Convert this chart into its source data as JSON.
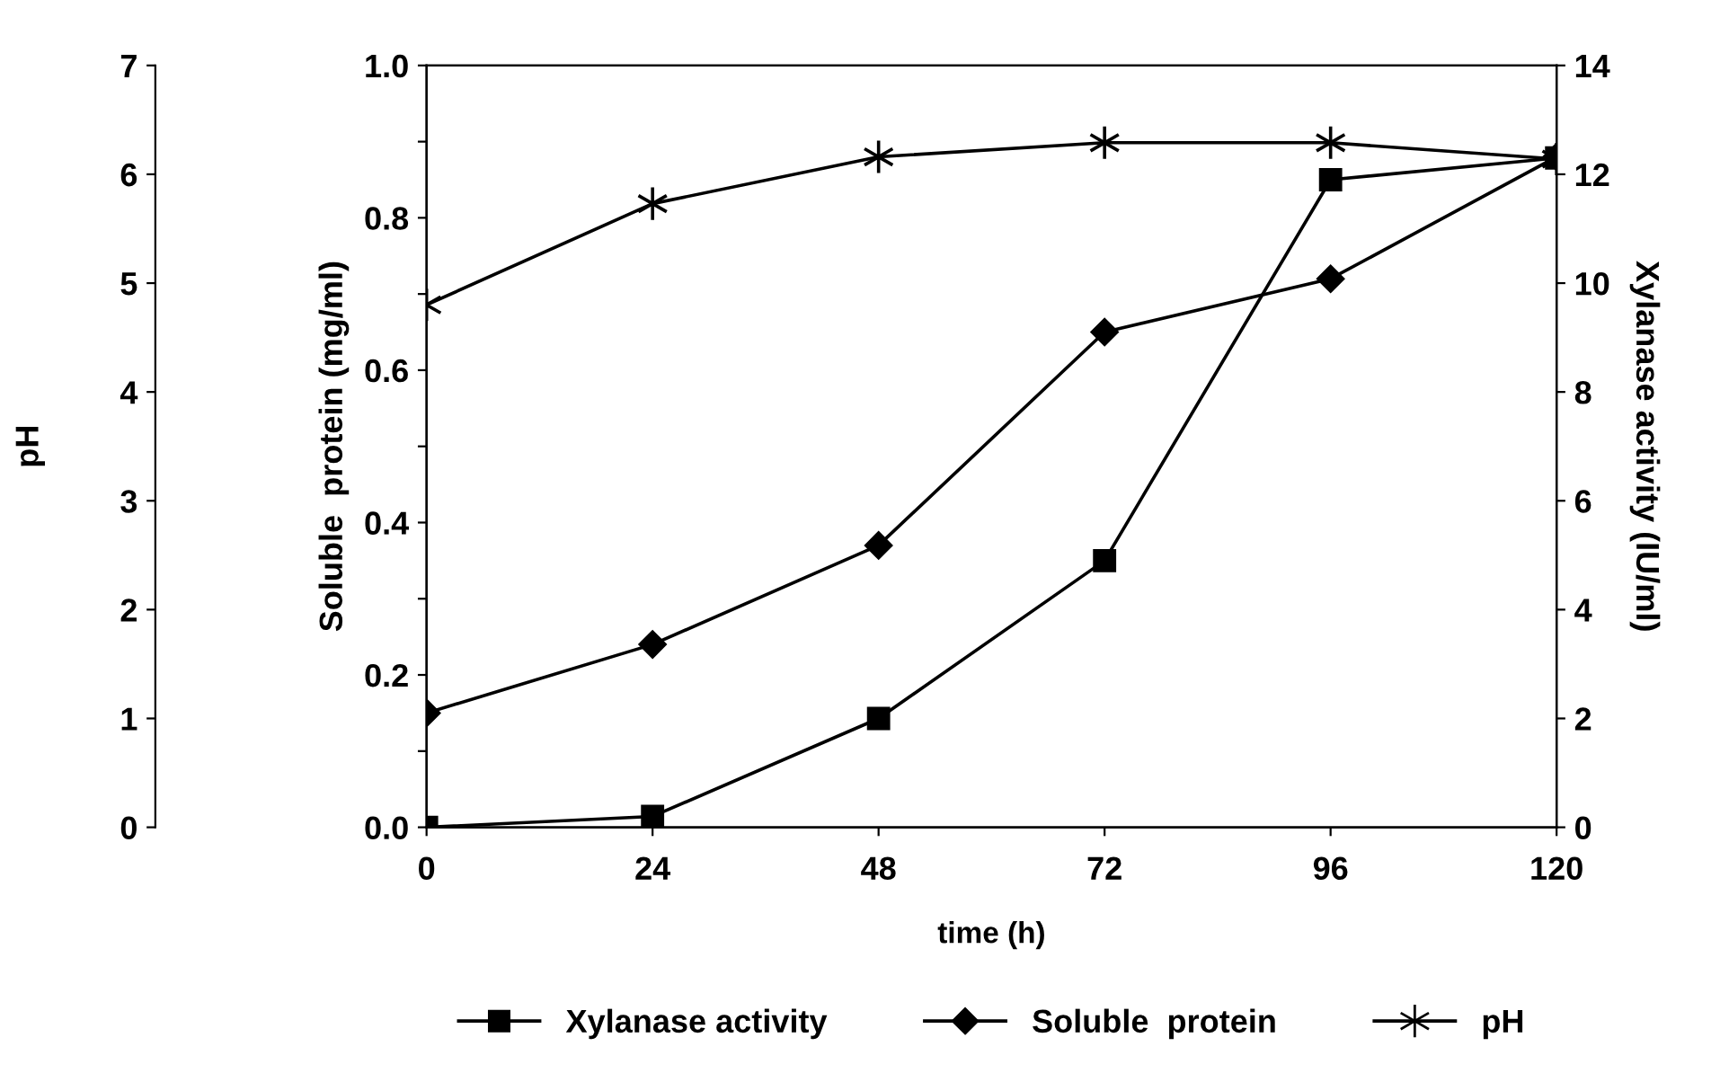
{
  "chart_data": {
    "type": "line",
    "xlabel": "time (h)",
    "ylabel": "Soluble  protein (mg/ml)",
    "y2label": "Xylanase activity (IU/ml)",
    "y3label": "pH",
    "x": [
      0,
      24,
      48,
      72,
      96,
      120
    ],
    "xlim": [
      0,
      120
    ],
    "xticks": [
      0,
      24,
      48,
      72,
      96,
      120
    ],
    "ylim": [
      0,
      1.0
    ],
    "yticks": [
      {
        "value": 0,
        "label": "0.0"
      },
      {
        "value": 0.1,
        "label": null
      },
      {
        "value": 0.2,
        "label": "0.2"
      },
      {
        "value": 0.3,
        "label": null
      },
      {
        "value": 0.4,
        "label": "0.4"
      },
      {
        "value": 0.5,
        "label": null
      },
      {
        "value": 0.6,
        "label": "0.6"
      },
      {
        "value": 0.7,
        "label": null
      },
      {
        "value": 0.8,
        "label": "0.8"
      },
      {
        "value": 0.9,
        "label": null
      },
      {
        "value": 1.0,
        "label": "1.0"
      }
    ],
    "y2lim": [
      0,
      14
    ],
    "y2ticks": [
      0,
      2,
      4,
      6,
      8,
      10,
      12,
      14
    ],
    "y3lim": [
      0,
      7
    ],
    "y3ticks": [
      0,
      1,
      2,
      3,
      4,
      5,
      6,
      7
    ],
    "grid": false,
    "legend": "bottom",
    "line_style": "solid",
    "series": [
      {
        "name": "Xylanase activity",
        "color": "#000000",
        "axis": "y2",
        "marker": "square",
        "values": [
          0,
          0.2,
          2.0,
          4.9,
          11.9,
          12.3
        ]
      },
      {
        "name": "Soluble  protein",
        "color": "#000000",
        "axis": "y",
        "marker": "diamond",
        "values": [
          0.15,
          0.24,
          0.37,
          0.65,
          0.72,
          0.88
        ]
      },
      {
        "name": "pH",
        "color": "#000000",
        "axis": "y3",
        "marker": "cross",
        "values": [
          4.8,
          5.73,
          6.16,
          6.29,
          6.29,
          6.14
        ]
      }
    ]
  }
}
